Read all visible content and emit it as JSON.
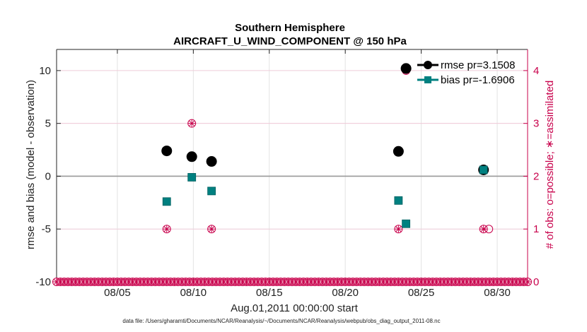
{
  "chart_data": {
    "type": "scatter",
    "title": "Southern Hemisphere",
    "subtitle": "AIRCRAFT_U_WIND_COMPONENT @ 150 hPa",
    "xlabel": "Aug.01,2011 00:00:00 start",
    "ylabel": "rmse and bias (model - observation)",
    "ylabel_right": "# of obs: o=possible; ∗=assimilated",
    "footnote": "data file: /Users/gharamti/Documents/NCAR/Reanalysis/~/Documents/NCAR/Reanalysis/webpub/obs_diag_output_2011-08.nc",
    "x_range": [
      1.0,
      32.0
    ],
    "y_range": [
      -10,
      12
    ],
    "y_right_range": [
      0,
      4.4
    ],
    "x_ticks": [
      5,
      10,
      15,
      20,
      25,
      30
    ],
    "x_tick_labels": [
      "08/05",
      "08/10",
      "08/15",
      "08/20",
      "08/25",
      "08/30"
    ],
    "y_ticks": [
      -10,
      -5,
      0,
      5,
      10
    ],
    "y_tick_labels": [
      "-10",
      "-5",
      "0",
      "5",
      "10"
    ],
    "y_right_ticks": [
      0,
      1,
      2,
      3,
      4
    ],
    "y_right_tick_labels": [
      "0",
      "1",
      "2",
      "3",
      "4"
    ],
    "grid": true,
    "legend_position": "top-right",
    "series": [
      {
        "name": "rmse pr=3.1508",
        "color": "#000000",
        "marker": "circle",
        "points": [
          [
            8.25,
            2.4
          ],
          [
            9.9,
            1.85
          ],
          [
            11.2,
            1.4
          ],
          [
            23.5,
            2.35
          ],
          [
            24.0,
            10.2
          ],
          [
            29.1,
            0.6
          ]
        ]
      },
      {
        "name": "bias pr=-1.6906",
        "color": "#008080",
        "marker": "square",
        "points": [
          [
            8.25,
            -2.4
          ],
          [
            9.9,
            -0.1
          ],
          [
            11.2,
            -1.4
          ],
          [
            23.5,
            -2.3
          ],
          [
            24.0,
            -4.5
          ],
          [
            29.1,
            0.6
          ]
        ]
      }
    ],
    "obs_counts": {
      "color": "#c8004b",
      "possible": [
        [
          8.25,
          1
        ],
        [
          9.9,
          3
        ],
        [
          11.2,
          1
        ],
        [
          23.5,
          1
        ],
        [
          24.0,
          4
        ],
        [
          29.1,
          1
        ],
        [
          29.45,
          1
        ]
      ],
      "assimilated": [
        [
          8.25,
          1
        ],
        [
          9.9,
          3
        ],
        [
          11.2,
          1
        ],
        [
          23.5,
          1
        ],
        [
          24.0,
          4
        ],
        [
          29.1,
          1
        ]
      ],
      "zero_baseline": {
        "start": 1.0,
        "end": 32.0,
        "step": 0.25
      }
    },
    "zero_line_color": "#999999"
  }
}
